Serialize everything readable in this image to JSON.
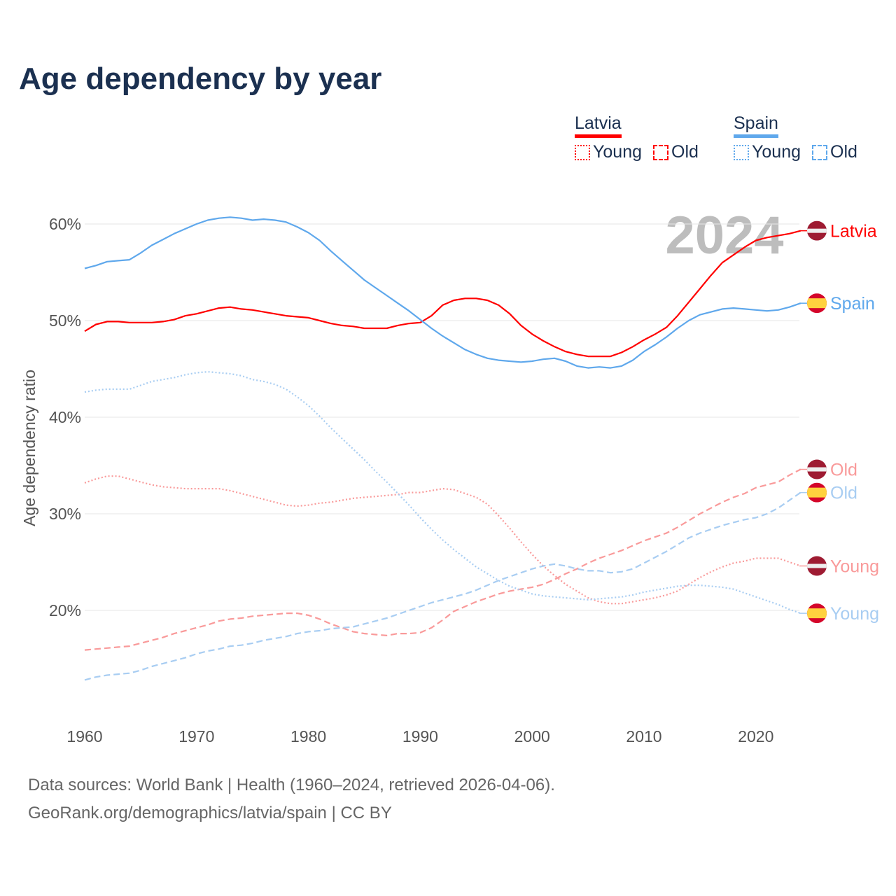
{
  "title": "Age dependency by year",
  "year_watermark": "2024",
  "legend": [
    {
      "country": "Latvia",
      "color": "#ff0000",
      "young_label": "Young",
      "old_label": "Old"
    },
    {
      "country": "Spain",
      "color": "#5fa8ec",
      "young_label": "Young",
      "old_label": "Old"
    }
  ],
  "footer": {
    "line1": "Data sources: World Bank | Health (1960–2024, retrieved 2026-04-06).",
    "line2": "GeoRank.org/demographics/latvia/spain | CC BY"
  },
  "chart_data": {
    "type": "line",
    "title": "Age dependency by year",
    "xlabel": "",
    "ylabel": "Age dependency ratio",
    "xlim": [
      1960,
      2024
    ],
    "ylim": [
      10,
      62
    ],
    "x_ticks": [
      1960,
      1970,
      1980,
      1990,
      2000,
      2010,
      2020
    ],
    "x_tick_labels": [
      "1960",
      "1970",
      "1980",
      "1990",
      "2000",
      "2010",
      "2020"
    ],
    "y_ticks": [
      20,
      30,
      40,
      50,
      60
    ],
    "y_tick_labels": [
      "20%",
      "30%",
      "40%",
      "50%",
      "60%"
    ],
    "grid": true,
    "legend_position": "top-right",
    "x_start": 1960,
    "series": [
      {
        "name": "Latvia",
        "end_label": "Latvia",
        "flag": "latvia",
        "style": "solid",
        "color": "#ff0000",
        "values": [
          48.9,
          49.6,
          49.9,
          49.9,
          49.8,
          49.8,
          49.8,
          49.9,
          50.1,
          50.5,
          50.7,
          51.0,
          51.3,
          51.4,
          51.2,
          51.1,
          50.9,
          50.7,
          50.5,
          50.4,
          50.3,
          50.0,
          49.7,
          49.5,
          49.4,
          49.2,
          49.2,
          49.2,
          49.5,
          49.7,
          49.8,
          50.5,
          51.6,
          52.1,
          52.3,
          52.3,
          52.1,
          51.6,
          50.7,
          49.5,
          48.6,
          47.9,
          47.3,
          46.8,
          46.5,
          46.3,
          46.3,
          46.3,
          46.7,
          47.3,
          48.0,
          48.6,
          49.3,
          50.5,
          51.9,
          53.3,
          54.7,
          56.0,
          56.8,
          57.6,
          58.3,
          58.6,
          58.8,
          59.0,
          59.3
        ]
      },
      {
        "name": "Spain",
        "end_label": "Spain",
        "flag": "spain",
        "style": "solid",
        "color": "#5fa8ec",
        "values": [
          55.4,
          55.7,
          56.1,
          56.2,
          56.3,
          57.0,
          57.8,
          58.4,
          59.0,
          59.5,
          60.0,
          60.4,
          60.6,
          60.7,
          60.6,
          60.4,
          60.5,
          60.4,
          60.2,
          59.7,
          59.1,
          58.3,
          57.2,
          56.2,
          55.2,
          54.2,
          53.4,
          52.6,
          51.8,
          51.0,
          50.1,
          49.2,
          48.4,
          47.7,
          47.0,
          46.5,
          46.1,
          45.9,
          45.8,
          45.7,
          45.8,
          46.0,
          46.1,
          45.8,
          45.3,
          45.1,
          45.2,
          45.1,
          45.3,
          45.9,
          46.8,
          47.5,
          48.3,
          49.2,
          50.0,
          50.6,
          50.9,
          51.2,
          51.3,
          51.2,
          51.1,
          51.0,
          51.1,
          51.4,
          51.8
        ]
      },
      {
        "name": "Latvia Young",
        "end_label": "Young",
        "flag": "latvia",
        "style": "dotted",
        "color": "#f99a9a",
        "values": [
          33.2,
          33.6,
          33.9,
          33.9,
          33.6,
          33.3,
          33.0,
          32.8,
          32.7,
          32.6,
          32.6,
          32.6,
          32.6,
          32.4,
          32.1,
          31.8,
          31.5,
          31.2,
          30.9,
          30.8,
          30.9,
          31.1,
          31.2,
          31.4,
          31.6,
          31.7,
          31.8,
          31.9,
          32.0,
          32.2,
          32.2,
          32.4,
          32.6,
          32.5,
          32.1,
          31.7,
          31.0,
          29.8,
          28.5,
          27.1,
          25.8,
          24.6,
          23.6,
          22.7,
          22.0,
          21.3,
          20.9,
          20.7,
          20.7,
          20.9,
          21.1,
          21.3,
          21.6,
          22.0,
          22.7,
          23.4,
          24.0,
          24.5,
          24.9,
          25.1,
          25.4,
          25.4,
          25.4,
          25.0,
          24.6
        ]
      },
      {
        "name": "Latvia Old",
        "end_label": "Old",
        "flag": "latvia",
        "style": "dashed",
        "color": "#f99a9a",
        "values": [
          15.9,
          16.0,
          16.1,
          16.2,
          16.3,
          16.6,
          16.9,
          17.2,
          17.6,
          17.9,
          18.2,
          18.5,
          18.9,
          19.1,
          19.2,
          19.4,
          19.5,
          19.6,
          19.7,
          19.7,
          19.5,
          19.1,
          18.6,
          18.2,
          17.8,
          17.6,
          17.5,
          17.4,
          17.6,
          17.6,
          17.7,
          18.2,
          19.0,
          19.9,
          20.4,
          20.9,
          21.3,
          21.7,
          22.0,
          22.2,
          22.4,
          22.7,
          23.2,
          23.8,
          24.3,
          24.9,
          25.4,
          25.8,
          26.2,
          26.7,
          27.2,
          27.6,
          28.0,
          28.6,
          29.3,
          30.0,
          30.6,
          31.2,
          31.7,
          32.1,
          32.7,
          33.0,
          33.3,
          34.0,
          34.6
        ]
      },
      {
        "name": "Spain Young",
        "end_label": "Young",
        "flag": "spain",
        "style": "dotted",
        "color": "#a8cdf2",
        "values": [
          42.6,
          42.8,
          42.9,
          42.9,
          42.9,
          43.3,
          43.7,
          43.9,
          44.1,
          44.4,
          44.6,
          44.7,
          44.6,
          44.5,
          44.3,
          43.9,
          43.7,
          43.4,
          42.9,
          42.1,
          41.2,
          40.1,
          38.9,
          37.8,
          36.7,
          35.6,
          34.4,
          33.3,
          32.1,
          30.9,
          29.6,
          28.4,
          27.3,
          26.3,
          25.4,
          24.5,
          23.8,
          23.1,
          22.5,
          22.1,
          21.7,
          21.5,
          21.4,
          21.3,
          21.2,
          21.1,
          21.2,
          21.3,
          21.4,
          21.6,
          21.9,
          22.1,
          22.3,
          22.5,
          22.6,
          22.6,
          22.5,
          22.4,
          22.2,
          21.8,
          21.4,
          21.0,
          20.6,
          20.1,
          19.7
        ]
      },
      {
        "name": "Spain Old",
        "end_label": "Old",
        "flag": "spain",
        "style": "dashed",
        "color": "#a8cdf2",
        "values": [
          12.8,
          13.1,
          13.3,
          13.4,
          13.5,
          13.8,
          14.2,
          14.5,
          14.8,
          15.1,
          15.5,
          15.8,
          16.0,
          16.3,
          16.4,
          16.6,
          16.9,
          17.1,
          17.3,
          17.6,
          17.8,
          17.9,
          18.1,
          18.2,
          18.3,
          18.6,
          18.9,
          19.2,
          19.6,
          20.0,
          20.4,
          20.8,
          21.1,
          21.4,
          21.7,
          22.1,
          22.6,
          23.1,
          23.5,
          23.9,
          24.3,
          24.6,
          24.8,
          24.6,
          24.3,
          24.1,
          24.1,
          23.9,
          24.0,
          24.3,
          24.9,
          25.5,
          26.1,
          26.8,
          27.5,
          28.0,
          28.4,
          28.8,
          29.1,
          29.4,
          29.6,
          30.0,
          30.6,
          31.4,
          32.2
        ]
      }
    ]
  }
}
